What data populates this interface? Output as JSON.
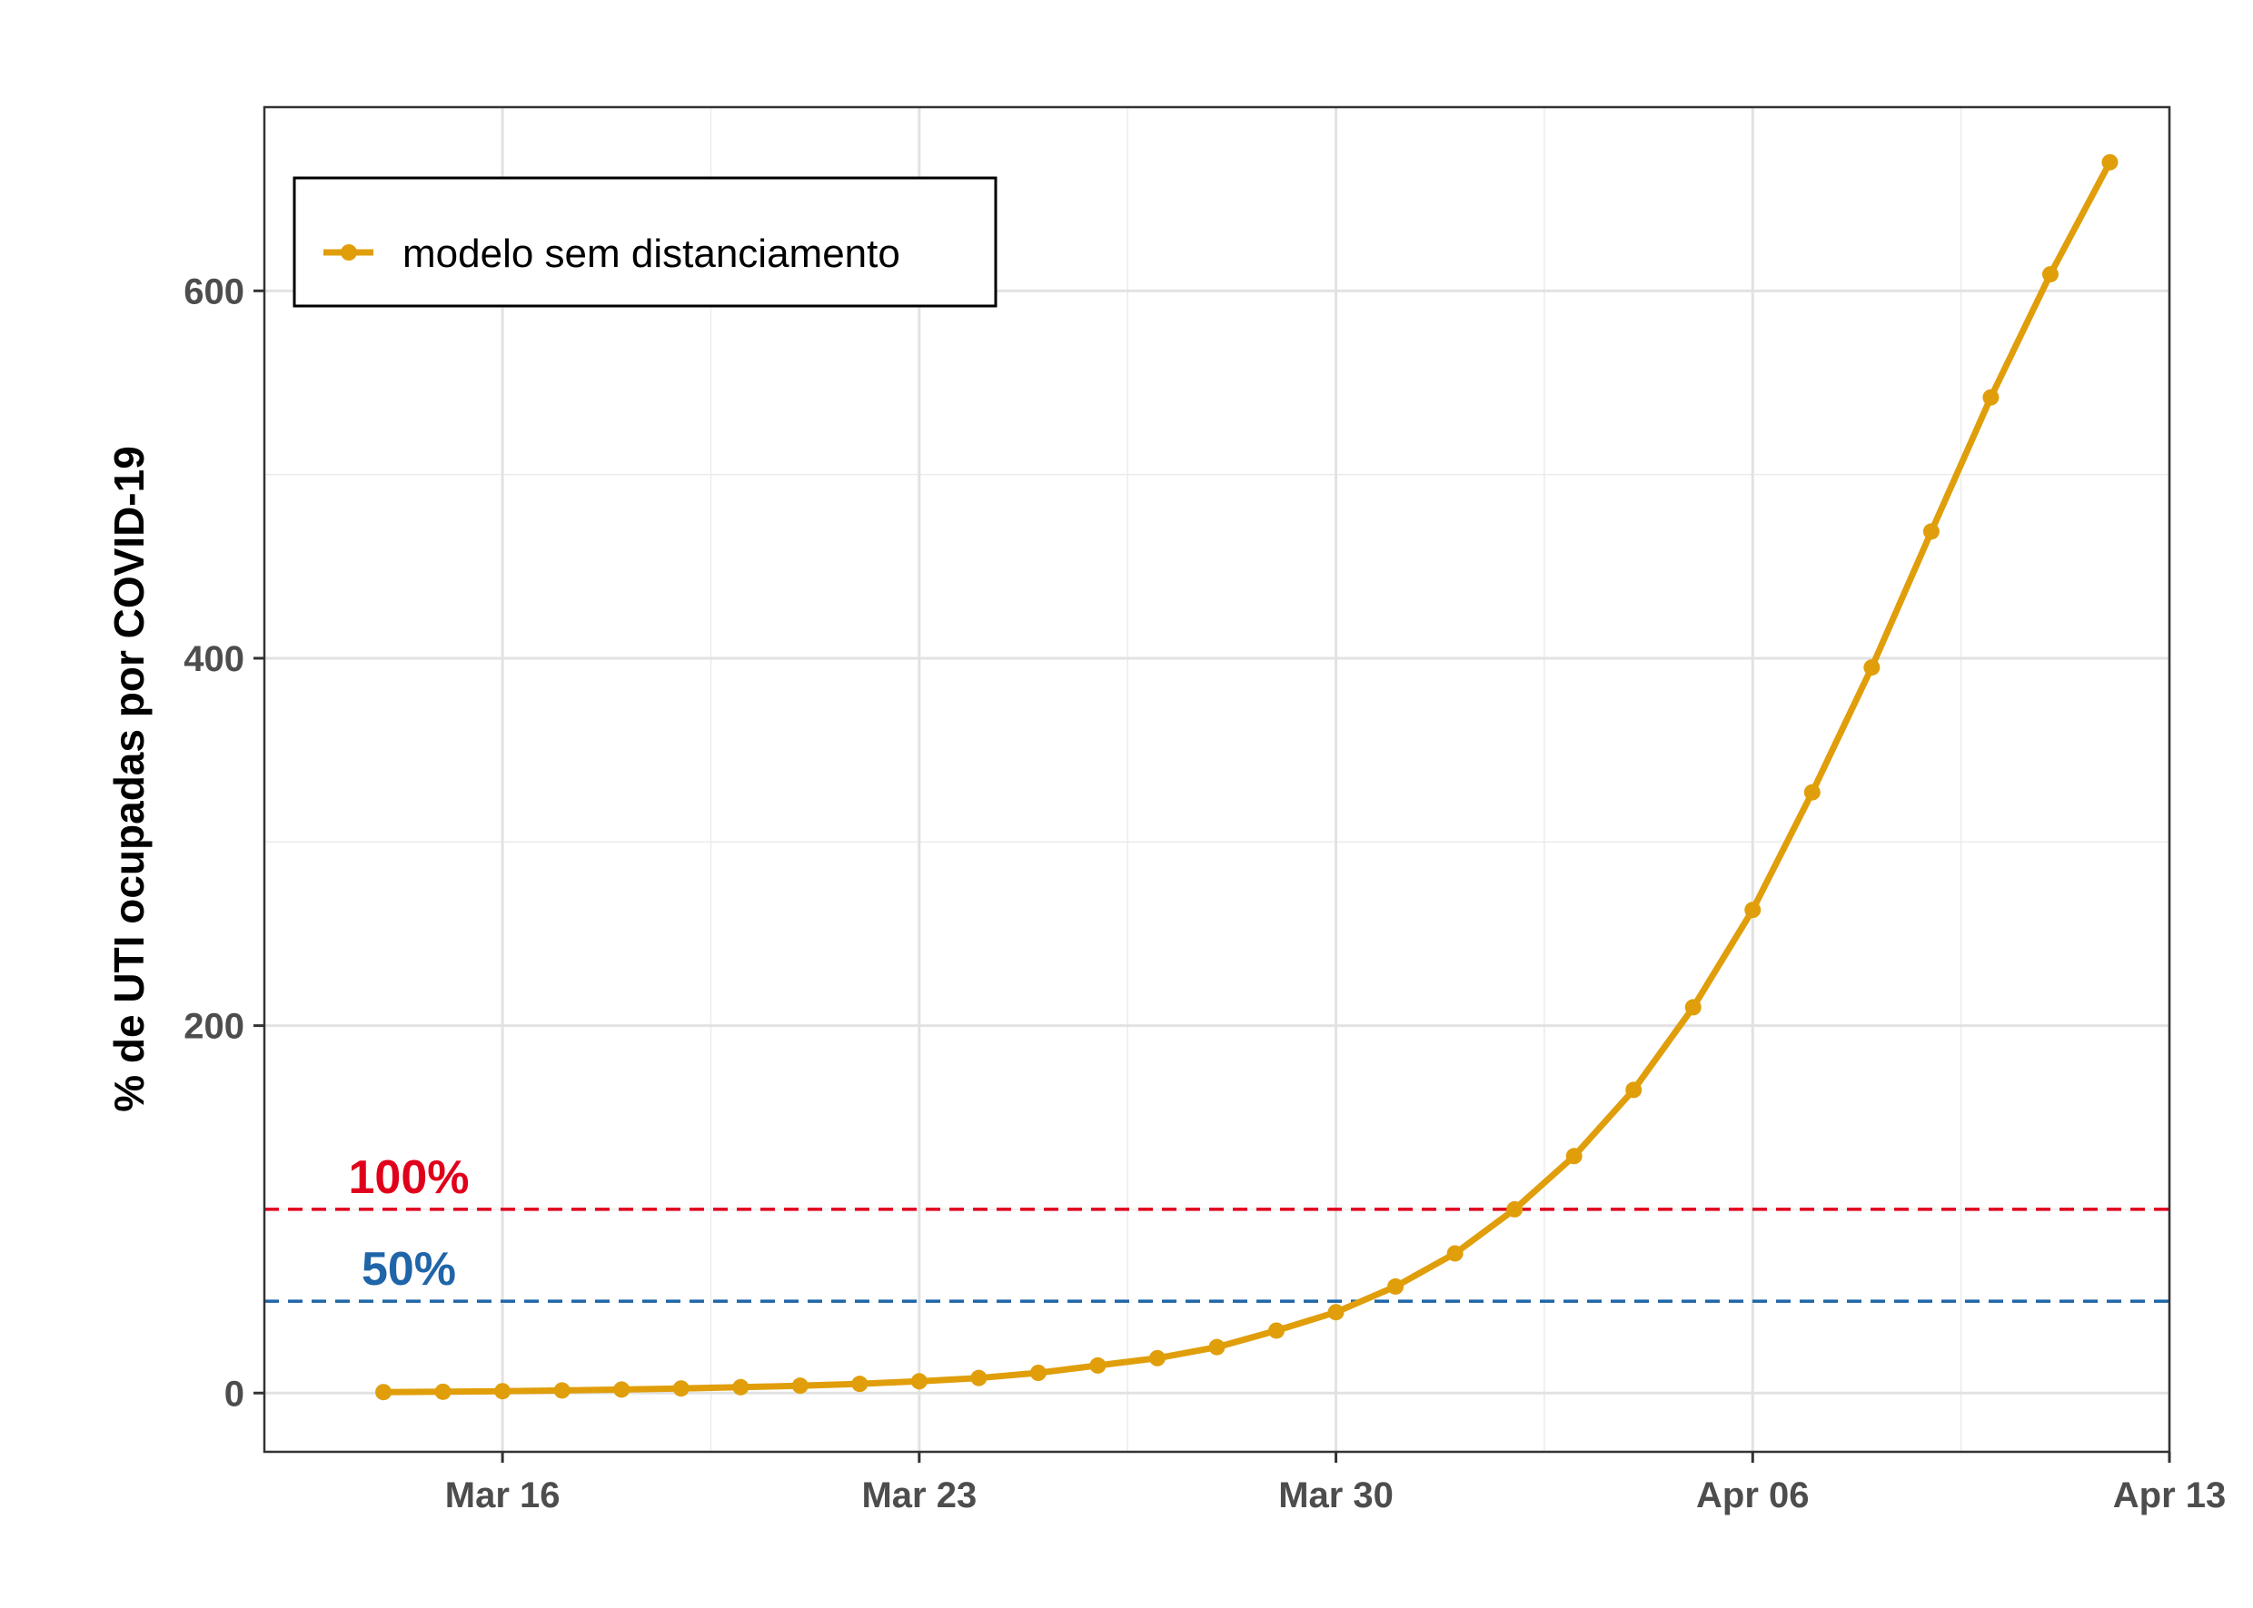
{
  "chart_data": {
    "type": "line",
    "title": "",
    "xlabel": "",
    "ylabel": "% de UTI ocupadas por COVID-19",
    "x_axis": {
      "type": "date",
      "range": [
        "2020-03-12",
        "2020-04-13"
      ],
      "tick_values": [
        "2020-03-16",
        "2020-03-23",
        "2020-03-30",
        "2020-04-06",
        "2020-04-13"
      ],
      "tick_labels": [
        "Mar 16",
        "Mar 23",
        "Mar 30",
        "Apr 06",
        "Apr 13"
      ]
    },
    "y_axis": {
      "range": [
        -32,
        700
      ],
      "ticks": [
        0,
        200,
        400,
        600
      ],
      "tick_labels": [
        "0",
        "200",
        "400",
        "600"
      ]
    },
    "grid": true,
    "legend": {
      "placement": "top-left",
      "entries": [
        "modelo sem distanciamento"
      ]
    },
    "series": [
      {
        "name": "modelo sem distanciamento",
        "color": "#E09E0B",
        "x": [
          "2020-03-14",
          "2020-03-15",
          "2020-03-16",
          "2020-03-17",
          "2020-03-18",
          "2020-03-19",
          "2020-03-20",
          "2020-03-21",
          "2020-03-22",
          "2020-03-23",
          "2020-03-24",
          "2020-03-25",
          "2020-03-26",
          "2020-03-27",
          "2020-03-28",
          "2020-03-29",
          "2020-03-30",
          "2020-03-31",
          "2020-04-01",
          "2020-04-02",
          "2020-04-03",
          "2020-04-04",
          "2020-04-05",
          "2020-04-06",
          "2020-04-07",
          "2020-04-08",
          "2020-04-09",
          "2020-04-10",
          "2020-04-11",
          "2020-04-12"
        ],
        "values": [
          0.5,
          0.7,
          1.0,
          1.4,
          1.9,
          2.5,
          3.2,
          4.0,
          5.0,
          6.4,
          8.2,
          11,
          15,
          19,
          25,
          34,
          44,
          58,
          76,
          100,
          129,
          165,
          210,
          263,
          327,
          395,
          469,
          542,
          609,
          670
        ]
      }
    ],
    "reference_lines": [
      {
        "value": 100,
        "label": "100%",
        "color": "#E0001B"
      },
      {
        "value": 50,
        "label": "50%",
        "color": "#1F65A8"
      }
    ]
  }
}
